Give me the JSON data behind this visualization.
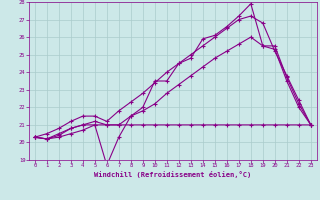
{
  "xlabel": "Windchill (Refroidissement éolien,°C)",
  "background_color": "#cce8e8",
  "grid_color": "#aacccc",
  "line_color": "#880088",
  "xlim": [
    -0.5,
    23.5
  ],
  "ylim": [
    19,
    28
  ],
  "xticks": [
    0,
    1,
    2,
    3,
    4,
    5,
    6,
    7,
    8,
    9,
    10,
    11,
    12,
    13,
    14,
    15,
    16,
    17,
    18,
    19,
    20,
    21,
    22,
    23
  ],
  "yticks": [
    19,
    20,
    21,
    22,
    23,
    24,
    25,
    26,
    27,
    28
  ],
  "series": [
    {
      "x": [
        0,
        1,
        2,
        3,
        4,
        5,
        6,
        7,
        8,
        9,
        10,
        11,
        12,
        13,
        14,
        15,
        16,
        17,
        18,
        19,
        20,
        21,
        22,
        23
      ],
      "y": [
        20.3,
        20.2,
        20.3,
        20.5,
        20.7,
        21.0,
        21.0,
        21.0,
        21.0,
        21.0,
        21.0,
        21.0,
        21.0,
        21.0,
        21.0,
        21.0,
        21.0,
        21.0,
        21.0,
        21.0,
        21.0,
        21.0,
        21.0,
        21.0
      ]
    },
    {
      "x": [
        0,
        1,
        2,
        3,
        4,
        5,
        6,
        7,
        8,
        9,
        10,
        11,
        12,
        13,
        14,
        15,
        16,
        17,
        18,
        19,
        20,
        21,
        22,
        23
      ],
      "y": [
        20.3,
        20.2,
        20.5,
        20.8,
        21.0,
        21.0,
        18.7,
        20.3,
        21.5,
        22.0,
        23.5,
        23.5,
        24.5,
        24.8,
        25.9,
        26.1,
        26.6,
        27.2,
        27.9,
        25.5,
        25.5,
        23.7,
        22.2,
        21.0
      ]
    },
    {
      "x": [
        0,
        1,
        2,
        3,
        4,
        5,
        6,
        7,
        8,
        9,
        10,
        11,
        12,
        13,
        14,
        15,
        16,
        17,
        18,
        19,
        20,
        21,
        22,
        23
      ],
      "y": [
        20.3,
        20.5,
        20.8,
        21.2,
        21.5,
        21.5,
        21.2,
        21.8,
        22.3,
        22.8,
        23.4,
        24.0,
        24.5,
        25.0,
        25.5,
        26.0,
        26.5,
        27.0,
        27.2,
        26.8,
        25.2,
        23.8,
        22.4,
        21.0
      ]
    },
    {
      "x": [
        0,
        1,
        2,
        3,
        4,
        5,
        6,
        7,
        8,
        9,
        10,
        11,
        12,
        13,
        14,
        15,
        16,
        17,
        18,
        19,
        20,
        21,
        22,
        23
      ],
      "y": [
        20.3,
        20.2,
        20.4,
        20.8,
        21.0,
        21.2,
        21.0,
        21.0,
        21.5,
        21.8,
        22.2,
        22.8,
        23.3,
        23.8,
        24.3,
        24.8,
        25.2,
        25.6,
        26.0,
        25.5,
        25.3,
        23.5,
        22.0,
        21.0
      ]
    }
  ]
}
